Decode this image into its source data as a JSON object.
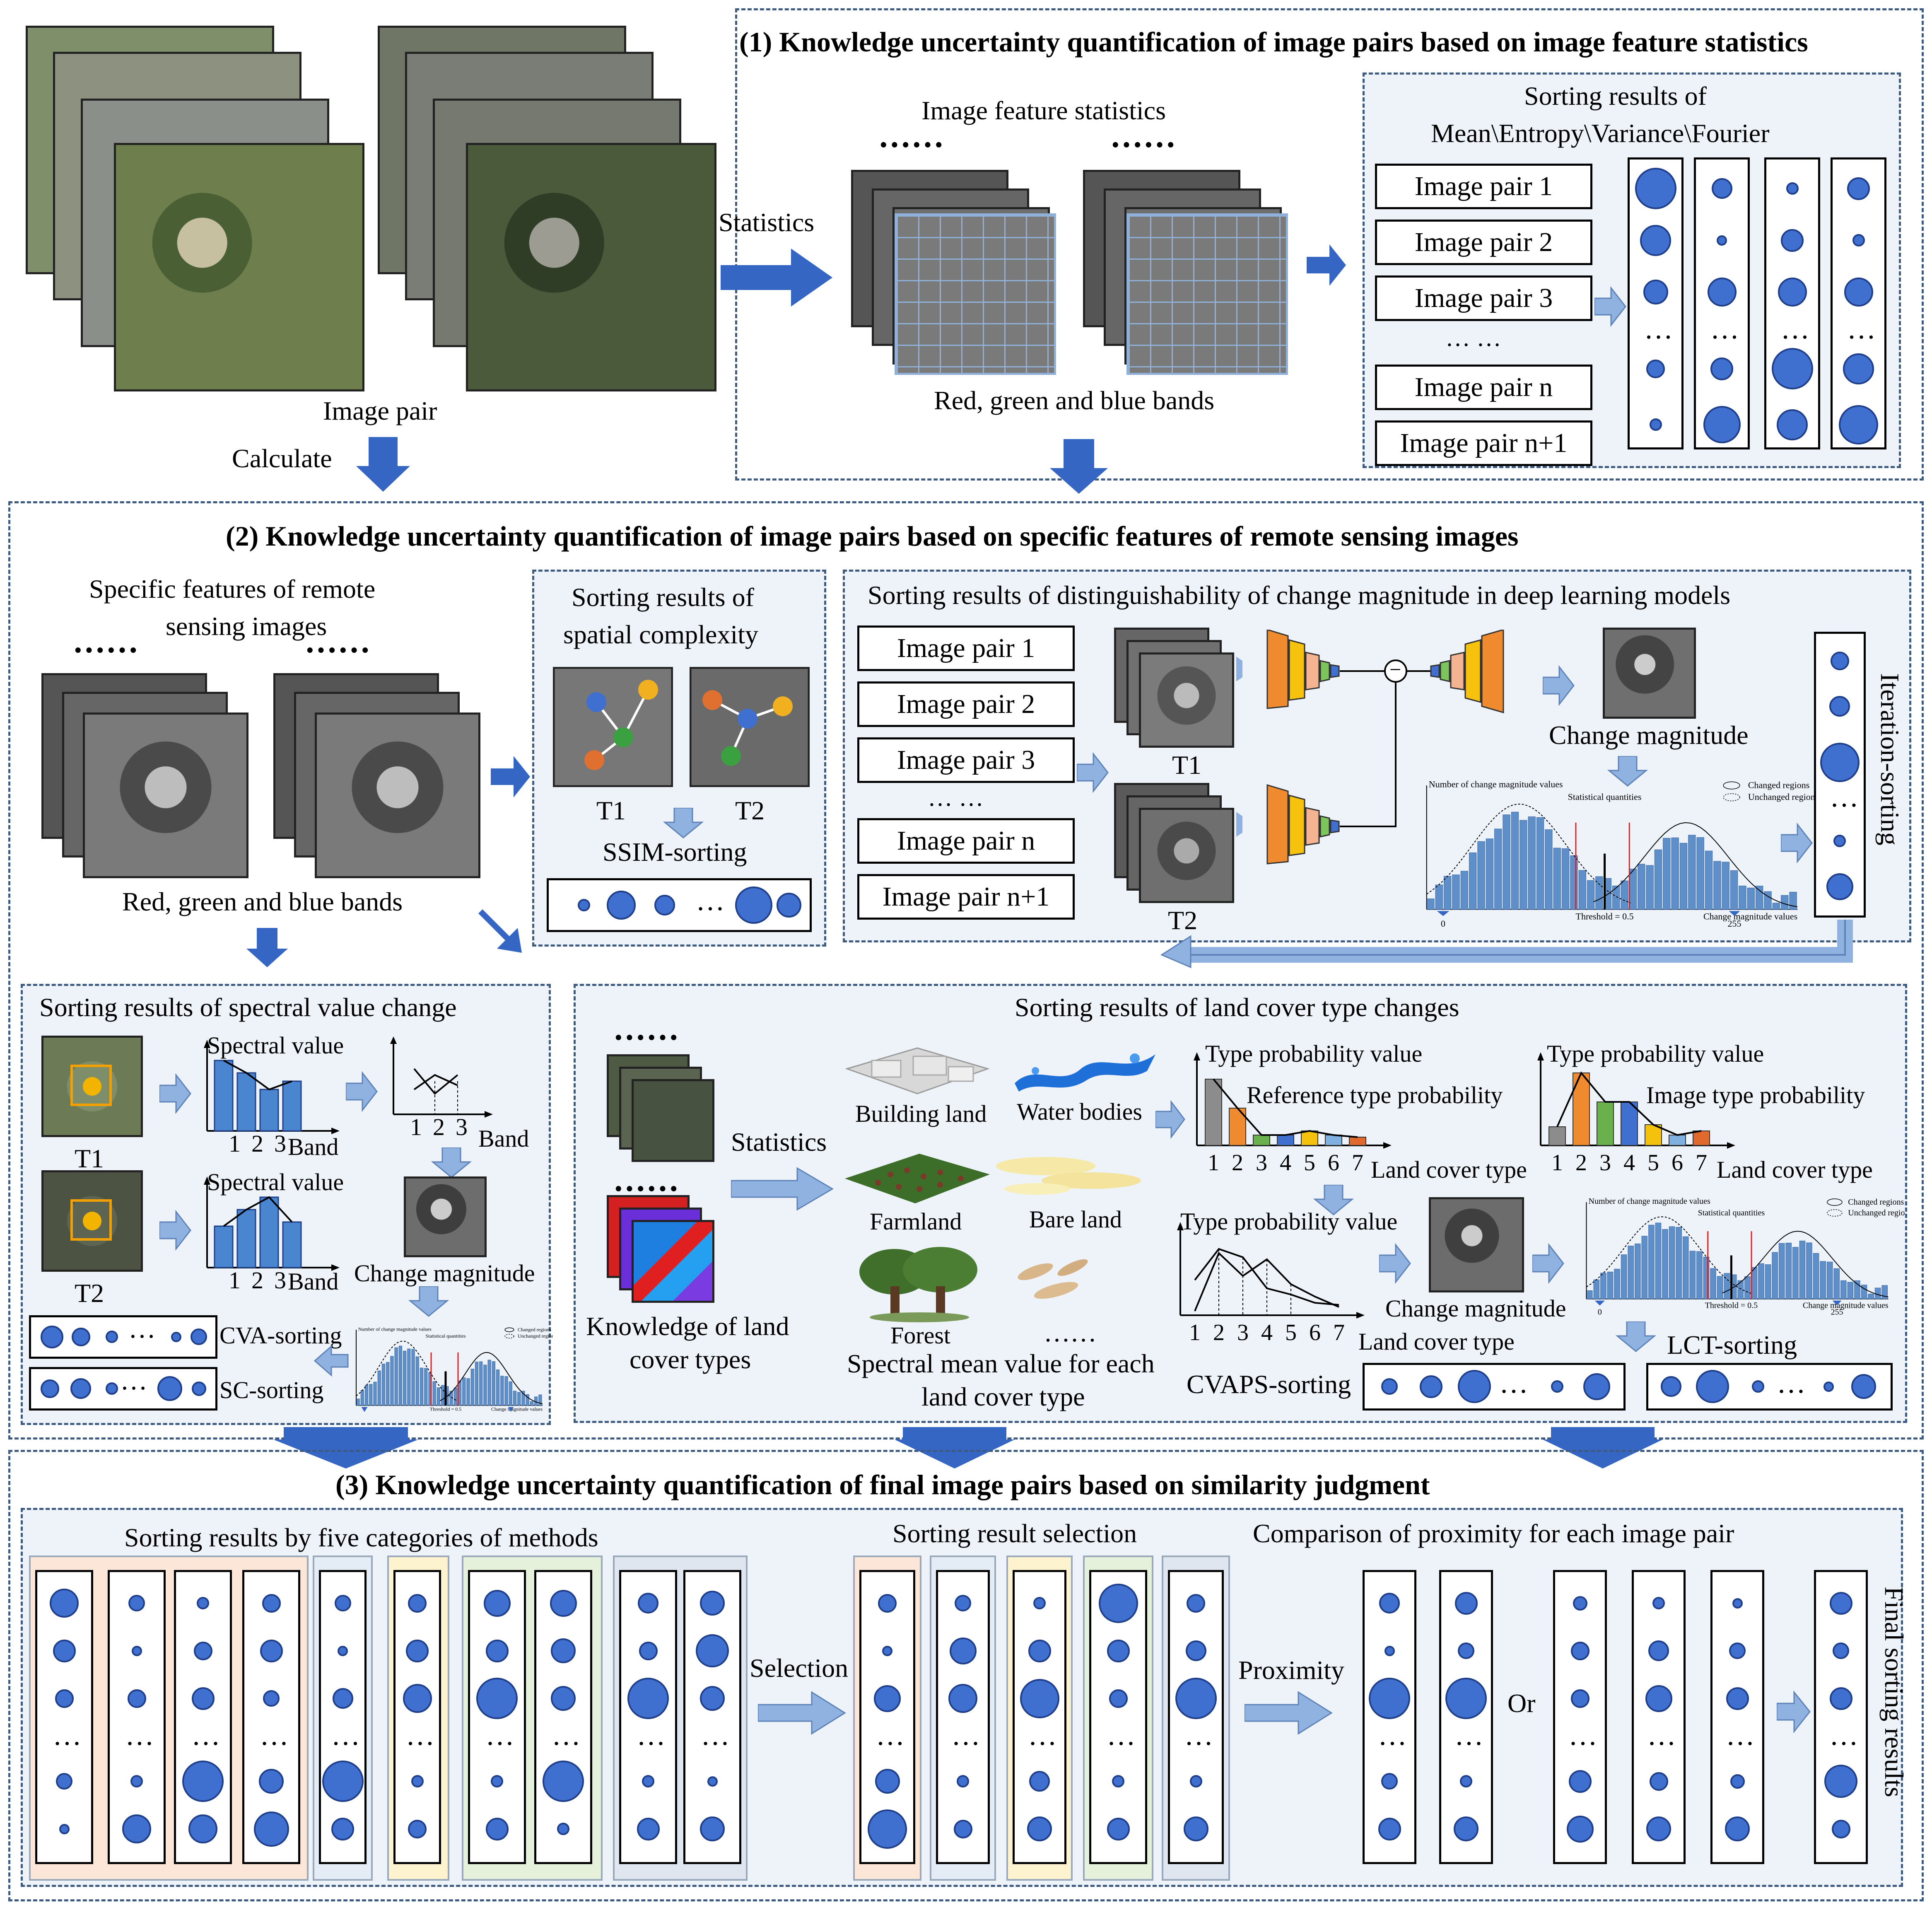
{
  "panel1": {
    "title": "(1) Knowledge uncertainty quantification of image pairs based on image feature statistics",
    "image_pair_label": "Image pair",
    "statistics_label": "Statistics",
    "calculate_label": "Calculate",
    "feature_stats_title": "Image feature statistics",
    "bands_label": "Red, green and blue bands",
    "ellipsis_dots": "······",
    "sorting_title_line1": "Sorting results of",
    "sorting_title_line2": "Mean\\Entropy\\Variance\\Fourier",
    "pairs": [
      "Image pair 1",
      "Image pair 2",
      "Image pair 3",
      "…   …",
      "Image pair n",
      "Image pair n+1"
    ],
    "col_ellipsis": "…"
  },
  "panel2": {
    "title": "(2) Knowledge uncertainty quantification of image pairs based on specific features of remote sensing images",
    "specific_title_line1": "Specific features of remote",
    "specific_title_line2": "sensing images",
    "bands_label": "Red, green and blue bands",
    "ellipsis_dots": "······",
    "spatial": {
      "title_line1": "Sorting results of",
      "title_line2": "spatial complexity",
      "t1": "T1",
      "t2": "T2",
      "sorting": "SSIM-sorting",
      "ellipsis": "…"
    },
    "deep": {
      "title": "Sorting results of distinguishability of change magnitude in deep learning models",
      "pairs": [
        "Image pair 1",
        "Image pair 2",
        "Image pair 3",
        "…   …",
        "Image pair n",
        "Image pair n+1"
      ],
      "t1": "T1",
      "t2": "T2",
      "change_magnitude": "Change magnitude",
      "iteration": "Iteration-sorting",
      "hist_y": "Number of change magnitude values",
      "hist_stat": "Statistical quantities",
      "hist_changed": "Changed regions",
      "hist_unchanged": "Unchanged regions",
      "hist_threshold": "Threshold = 0.5",
      "hist_x": "Change magnitude values",
      "hist_0": "0",
      "hist_255": "255",
      "minus": "−",
      "ellipsis": "…"
    },
    "spectral": {
      "title": "Sorting results of spectral value change",
      "spectral_value": "Spectral value",
      "band": "Band",
      "ticks": [
        "1",
        "2",
        "3"
      ],
      "t1": "T1",
      "t2": "T2",
      "change_magnitude": "Change magnitude",
      "cva": "CVA-sorting",
      "sc": "SC-sorting",
      "ellipsis": "…",
      "hist_y": "Number of change magnitude values",
      "hist_stat": "Statistical quantities",
      "hist_changed": "Changed regions",
      "hist_unchanged": "Unchanged regions",
      "hist_threshold": "Threshold = 0.5",
      "hist_x": "Change magnitude values"
    },
    "landcover": {
      "title": "Sorting results of land cover type changes",
      "statistics": "Statistics",
      "knowledge_line1": "Knowledge of land",
      "knowledge_line2": "cover types",
      "building": "Building land",
      "water": "Water bodies",
      "farmland": "Farmland",
      "bare": "Bare land",
      "forest": "Forest",
      "more_dots": "……",
      "spectral_mean_line1": "Spectral mean value for each",
      "spectral_mean_line2": "land cover type",
      "type_prob": "Type probability value",
      "ref_prob": "Reference  type probability",
      "img_prob": "Image type probability",
      "lc_type": "Land cover type",
      "ticks": [
        "1",
        "2",
        "3",
        "4",
        "5",
        "6",
        "7"
      ],
      "change_magnitude": "Change magnitude",
      "cvaps": "CVAPS-sorting",
      "lct": "LCT-sorting",
      "ellipsis": "…",
      "ellipsis_dots": "······",
      "hist_y": "Number of change magnitude values",
      "hist_stat": "Statistical quantities",
      "hist_changed": "Changed regions",
      "hist_unchanged": "Unchanged regions",
      "hist_threshold": "Threshold = 0.5",
      "hist_x": "Change magnitude values",
      "hist_0": "0",
      "hist_255": "255"
    }
  },
  "panel3": {
    "title": "(3) Knowledge uncertainty quantification of final image pairs based on similarity judgment",
    "five_categories": "Sorting results by five categories of methods",
    "selection_title": "Sorting result selection",
    "comparison_title": "Comparison of proximity for each image pair",
    "selection": "Selection",
    "proximity": "Proximity",
    "or": "Or",
    "final": "Final sorting results",
    "ellipsis": "…"
  },
  "colors": {
    "dot_fill": "#3f6fcf",
    "dot_stroke": "#1f3f8a",
    "arrow_dark": "#3566c4",
    "arrow_light": "#8fb2e0",
    "panel_border": "#3d5a80",
    "subpanel_bg": "#eef3fa",
    "group_orange": "#fbe6d8",
    "group_blue": "#e4ecf6",
    "group_yellow": "#fdf3cf",
    "group_green": "#e5f1da",
    "group_slate": "#dfe6ef"
  }
}
